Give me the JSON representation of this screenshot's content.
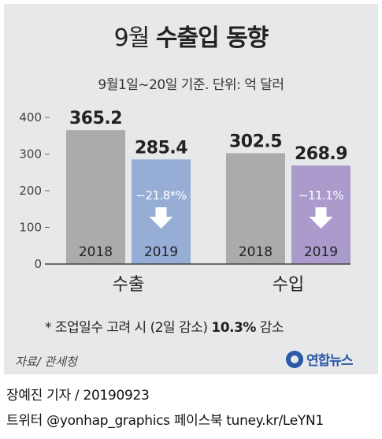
{
  "title_light": "9월",
  "title_bold": "수출입 동향",
  "subtitle": "9월1일~20일 기준. 단위: 억 달러",
  "chart_data": {
    "type": "bar",
    "ylim": [
      0,
      400
    ],
    "yticks": [
      0,
      100,
      200,
      300,
      400
    ],
    "groups": [
      {
        "name": "수출",
        "bars": [
          {
            "year": "2018",
            "value": 365.2,
            "label": "365.2",
            "color": "#ababab"
          },
          {
            "year": "2019",
            "value": 285.4,
            "label": "285.4",
            "color": "#96add6"
          }
        ],
        "change": "−21.8*%"
      },
      {
        "name": "수입",
        "bars": [
          {
            "year": "2018",
            "value": 302.5,
            "label": "302.5",
            "color": "#ababab"
          },
          {
            "year": "2019",
            "value": 268.9,
            "label": "268.9",
            "color": "#ab9bcc"
          }
        ],
        "change": "−11.1%"
      }
    ]
  },
  "footnote_prefix": "* 조업일수 고려 시 (2일 감소) ",
  "footnote_bold": "10.3%",
  "footnote_suffix": " 감소",
  "source": "자료/ 관세청",
  "logo_text": "연합뉴스",
  "credit_line1": "장예진 기자  / 20190923",
  "credit_line2": "트위터 @yonhap_graphics  페이스북 tuney.kr/LeYN1"
}
